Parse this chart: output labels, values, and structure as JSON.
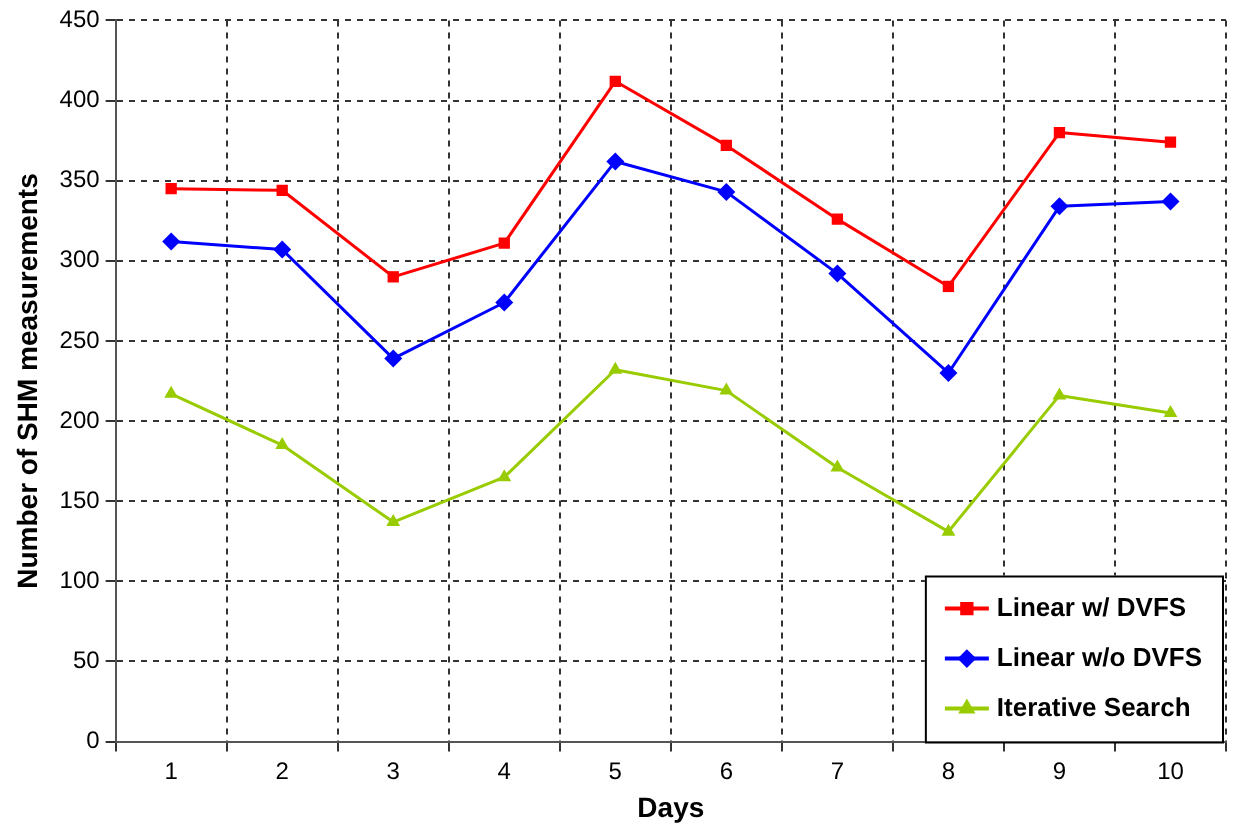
{
  "chart_data": {
    "type": "line",
    "xlabel": "Days",
    "ylabel": "Number of SHM measurements",
    "categories": [
      "1",
      "2",
      "3",
      "4",
      "5",
      "6",
      "7",
      "8",
      "9",
      "10"
    ],
    "ylim": [
      0,
      450
    ],
    "yticks": [
      0,
      50,
      100,
      150,
      200,
      250,
      300,
      350,
      400,
      450
    ],
    "grid": true,
    "legend": "bottom right",
    "line_style": "solid",
    "series": [
      {
        "name": "Linear w/ DVFS",
        "color": "#ff0000",
        "marker": "square",
        "values": [
          345,
          344,
          290,
          311,
          412,
          372,
          326,
          284,
          380,
          374
        ]
      },
      {
        "name": "Linear w/o DVFS",
        "color": "#0000ff",
        "marker": "diamond",
        "values": [
          312,
          307,
          239,
          274,
          362,
          343,
          292,
          230,
          334,
          337
        ]
      },
      {
        "name": "Iterative Search",
        "color": "#99cc00",
        "marker": "triangle",
        "values": [
          217,
          185,
          137,
          165,
          232,
          219,
          171,
          131,
          216,
          205
        ]
      }
    ]
  }
}
